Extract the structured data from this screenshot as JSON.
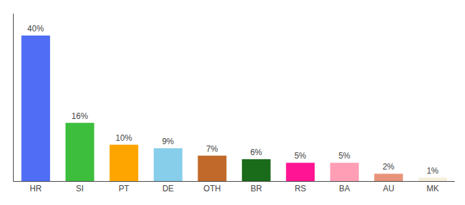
{
  "chart_data": {
    "type": "bar",
    "categories": [
      "HR",
      "SI",
      "PT",
      "DE",
      "OTH",
      "BR",
      "RS",
      "BA",
      "AU",
      "MK"
    ],
    "values": [
      40,
      16,
      10,
      9,
      7,
      6,
      5,
      5,
      2,
      1
    ],
    "value_labels": [
      "40%",
      "16%",
      "10%",
      "9%",
      "7%",
      "6%",
      "5%",
      "5%",
      "2%",
      "1%"
    ],
    "colors": [
      "#4F6DF5",
      "#3DBF3D",
      "#FFA500",
      "#87CEEB",
      "#C1692A",
      "#1A6B1A",
      "#FF1493",
      "#FF9EB5",
      "#E8947A",
      "#F5F0DC"
    ],
    "ylim": [
      0,
      46
    ],
    "data_labels": true,
    "tick_labels": "x",
    "grid": false
  }
}
